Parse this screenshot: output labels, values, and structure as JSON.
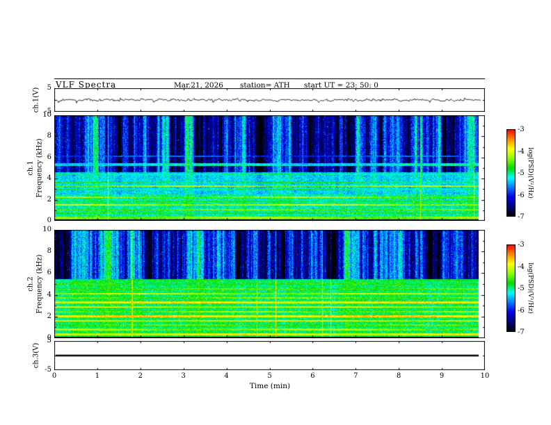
{
  "header": {
    "title": "VLF  Spectra",
    "date": "Mar.21, 2026",
    "station": "station= ATH",
    "start_ut": "start UT  =   23: 50: 0"
  },
  "axes": {
    "x_label": "Time  (min)",
    "x_ticks": [
      "0",
      "1",
      "2",
      "3",
      "4",
      "5",
      "6",
      "7",
      "8",
      "9",
      "10"
    ]
  },
  "colors": {
    "background": "#ffffff",
    "frame": "#000000",
    "trace": "#000000",
    "colormap_stops": [
      "#000000",
      "#000078",
      "#0000e8",
      "#0078ff",
      "#00ffff",
      "#00dc00",
      "#8cff00",
      "#ffff00",
      "#ff8c00",
      "#ff0000"
    ]
  },
  "chart_data": [
    {
      "type": "line",
      "panel": "ch1_waveform",
      "ylabel": "ch.1(V)",
      "ylim": [
        -5,
        5
      ],
      "yticks": [
        "5",
        "-5"
      ],
      "xlim": [
        0,
        10
      ],
      "signal": {
        "mean": 0,
        "noise_amp": 0.9,
        "spike_amp": 1.9,
        "spike_prob": 0.04
      },
      "description": "Continuous noisy voltage trace centred on 0 V with irregular spikes of roughly +/-2 V over 10 minutes"
    },
    {
      "type": "heatmap",
      "panel": "ch1_spectrogram",
      "ylabel_lines": [
        "ch.1",
        "Frequency  (kHz)"
      ],
      "ylim": [
        0,
        10
      ],
      "yticks": [
        "10",
        "8",
        "6",
        "4",
        "2",
        "0"
      ],
      "xlim": [
        0,
        10
      ],
      "value_range": [
        -7,
        -3
      ],
      "colorbar_label": "log(PSD)(V²/Hz)",
      "colorbar_ticks": [
        "-3",
        "-4",
        "-5",
        "-6",
        "-7"
      ],
      "profile": [
        {
          "f0": 0.0,
          "f1": 0.16,
          "level": -7.0,
          "noise": 0.15
        },
        {
          "f0": 0.16,
          "f1": 2.5,
          "level": -5.05,
          "noise": 0.5
        },
        {
          "f0": 2.5,
          "f1": 4.6,
          "level": -5.3,
          "noise": 0.45
        },
        {
          "f0": 4.6,
          "f1": 10.01,
          "level": -6.05,
          "noise": 0.55
        }
      ],
      "hlines": [
        {
          "f": 0.3,
          "level": -4.35
        },
        {
          "f": 0.7,
          "level": -4.8
        },
        {
          "f": 1.05,
          "level": -4.5
        },
        {
          "f": 1.5,
          "level": -4.2
        },
        {
          "f": 1.85,
          "level": -4.85
        },
        {
          "f": 2.25,
          "level": -4.4
        },
        {
          "f": 2.95,
          "level": -5.0
        },
        {
          "f": 3.3,
          "level": -4.35
        },
        {
          "f": 3.6,
          "level": -4.9
        },
        {
          "f": 4.4,
          "level": -5.1
        },
        {
          "f": 5.35,
          "level": -5.25,
          "hw": 0.12
        },
        {
          "f": 6.1,
          "level": -5.85
        }
      ],
      "streaks": {
        "threshold": 4.6,
        "weight_high": 0.85,
        "weight_low": 0.14
      },
      "vertical_line_prob": 0.008,
      "speckle": {
        "prob": 0.025,
        "boost": 0.9
      },
      "description": "Cyan/green hiss background below ~4.6 kHz with narrow yellow horizontal emission lines; darker blue band above ~4.6 kHz crossed by irregular dark vertical striations; black band at 0 kHz"
    },
    {
      "type": "heatmap",
      "panel": "ch2_spectrogram",
      "ylabel_lines": [
        "ch.2",
        "Frequency  (kHz)"
      ],
      "ylim": [
        0,
        10
      ],
      "yticks": [
        "10",
        "8",
        "6",
        "4",
        "2",
        "0"
      ],
      "xlim": [
        0,
        10
      ],
      "value_range": [
        -7,
        -3
      ],
      "colorbar_label": "log(PSD)(V²/Hz)",
      "colorbar_ticks": [
        "-3",
        "-4",
        "-5",
        "-6",
        "-7"
      ],
      "profile": [
        {
          "f0": 0.0,
          "f1": 0.16,
          "level": -7.0,
          "noise": 0.15
        },
        {
          "f0": 0.16,
          "f1": 5.4,
          "level": -4.9,
          "noise": 0.45
        },
        {
          "f0": 5.4,
          "f1": 10.01,
          "level": -6.0,
          "noise": 0.55
        }
      ],
      "hlines": [
        {
          "f": 0.35,
          "level": -4.0
        },
        {
          "f": 0.8,
          "level": -4.35
        },
        {
          "f": 1.2,
          "level": -4.6
        },
        {
          "f": 1.6,
          "level": -4.1
        },
        {
          "f": 2.0,
          "level": -3.85,
          "hw": 0.1
        },
        {
          "f": 2.45,
          "level": -4.4
        },
        {
          "f": 2.9,
          "level": -4.15
        },
        {
          "f": 3.3,
          "level": -3.95,
          "hw": 0.1
        },
        {
          "f": 3.7,
          "level": -4.5
        },
        {
          "f": 4.1,
          "level": -4.25
        },
        {
          "f": 4.55,
          "level": -4.6
        },
        {
          "f": 5.0,
          "level": -4.8
        },
        {
          "f": 5.35,
          "level": -5.0
        }
      ],
      "streaks": {
        "threshold": 5.4,
        "weight_high": 0.85,
        "weight_low": 0.12
      },
      "vertical_line_prob": 0.01,
      "speckle": {
        "prob": 0.03,
        "boost": 0.9
      },
      "description": "Strong yellow/orange horizontal emission lines up to ~5.4 kHz over green/cyan background; darker blue striated band above ~5.4 kHz; black band at 0 kHz"
    },
    {
      "type": "line",
      "panel": "ch3_waveform",
      "ylabel": "ch.3(V)",
      "ylim": [
        -5,
        5
      ],
      "yticks": [
        "5",
        "-5"
      ],
      "xlim": [
        0,
        10
      ],
      "signal": {
        "constant": 0
      },
      "description": "Flat thick black line at 0 V (channel inactive)"
    }
  ]
}
